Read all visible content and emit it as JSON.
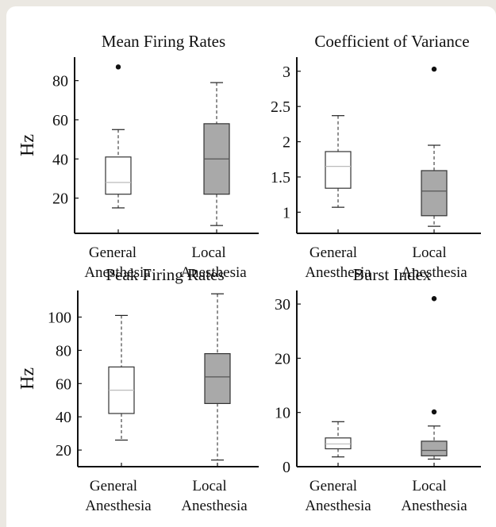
{
  "colors": {
    "page_background": "#ebe8e2",
    "panel": "#ffffff",
    "axis": "#111111",
    "box_general": "#ffffff",
    "box_local": "#a9a9a9",
    "median_general": "#bbbbbb",
    "median_local": "#555555"
  },
  "chart_data": [
    {
      "type": "box",
      "title": "Mean Firing Rates",
      "ylabel": "Hz",
      "xlabel": "",
      "ylim": [
        2,
        92
      ],
      "yticks": [
        20,
        40,
        60,
        80
      ],
      "categories": [
        "General\nAnesthesia",
        "Local\nAnesthesia"
      ],
      "series": [
        {
          "whisker_low": 15,
          "q1": 22,
          "median": 28,
          "q3": 41,
          "whisker_high": 55,
          "outliers": [
            87
          ]
        },
        {
          "whisker_low": 6,
          "q1": 22,
          "median": 40,
          "q3": 58,
          "whisker_high": 79,
          "outliers": []
        }
      ]
    },
    {
      "type": "box",
      "title": "Coefficient of Variance",
      "ylabel": "",
      "xlabel": "",
      "ylim": [
        0.7,
        3.2
      ],
      "yticks": [
        1,
        1.5,
        2,
        2.5,
        3
      ],
      "categories": [
        "General\nAnesthesia",
        "Local\nAnesthesia"
      ],
      "series": [
        {
          "whisker_low": 1.07,
          "q1": 1.34,
          "median": 1.65,
          "q3": 1.86,
          "whisker_high": 2.37,
          "outliers": []
        },
        {
          "whisker_low": 0.8,
          "q1": 0.95,
          "median": 1.3,
          "q3": 1.59,
          "whisker_high": 1.95,
          "outliers": [
            3.03
          ]
        }
      ]
    },
    {
      "type": "box",
      "title": "Peak Firing Rates",
      "ylabel": "Hz",
      "xlabel": "",
      "ylim": [
        10,
        116
      ],
      "yticks": [
        20,
        40,
        60,
        80,
        100
      ],
      "categories": [
        "General\nAnesthesia",
        "Local\nAnesthesia"
      ],
      "series": [
        {
          "whisker_low": 26,
          "q1": 42,
          "median": 56,
          "q3": 70,
          "whisker_high": 101,
          "outliers": []
        },
        {
          "whisker_low": 14,
          "q1": 48,
          "median": 64,
          "q3": 78,
          "whisker_high": 114,
          "outliers": []
        }
      ]
    },
    {
      "type": "box",
      "title": "Burst Index",
      "ylabel": "",
      "xlabel": "",
      "ylim": [
        0,
        32.5
      ],
      "yticks": [
        0,
        10,
        20,
        30
      ],
      "categories": [
        "General\nAnesthesia",
        "Local\nAnesthesia"
      ],
      "series": [
        {
          "whisker_low": 1.8,
          "q1": 3.3,
          "median": 4.2,
          "q3": 5.3,
          "whisker_high": 8.3,
          "outliers": []
        },
        {
          "whisker_low": 1.4,
          "q1": 2.0,
          "median": 3.0,
          "q3": 4.7,
          "whisker_high": 7.5,
          "outliers": [
            10.1,
            31.0
          ]
        }
      ]
    }
  ]
}
